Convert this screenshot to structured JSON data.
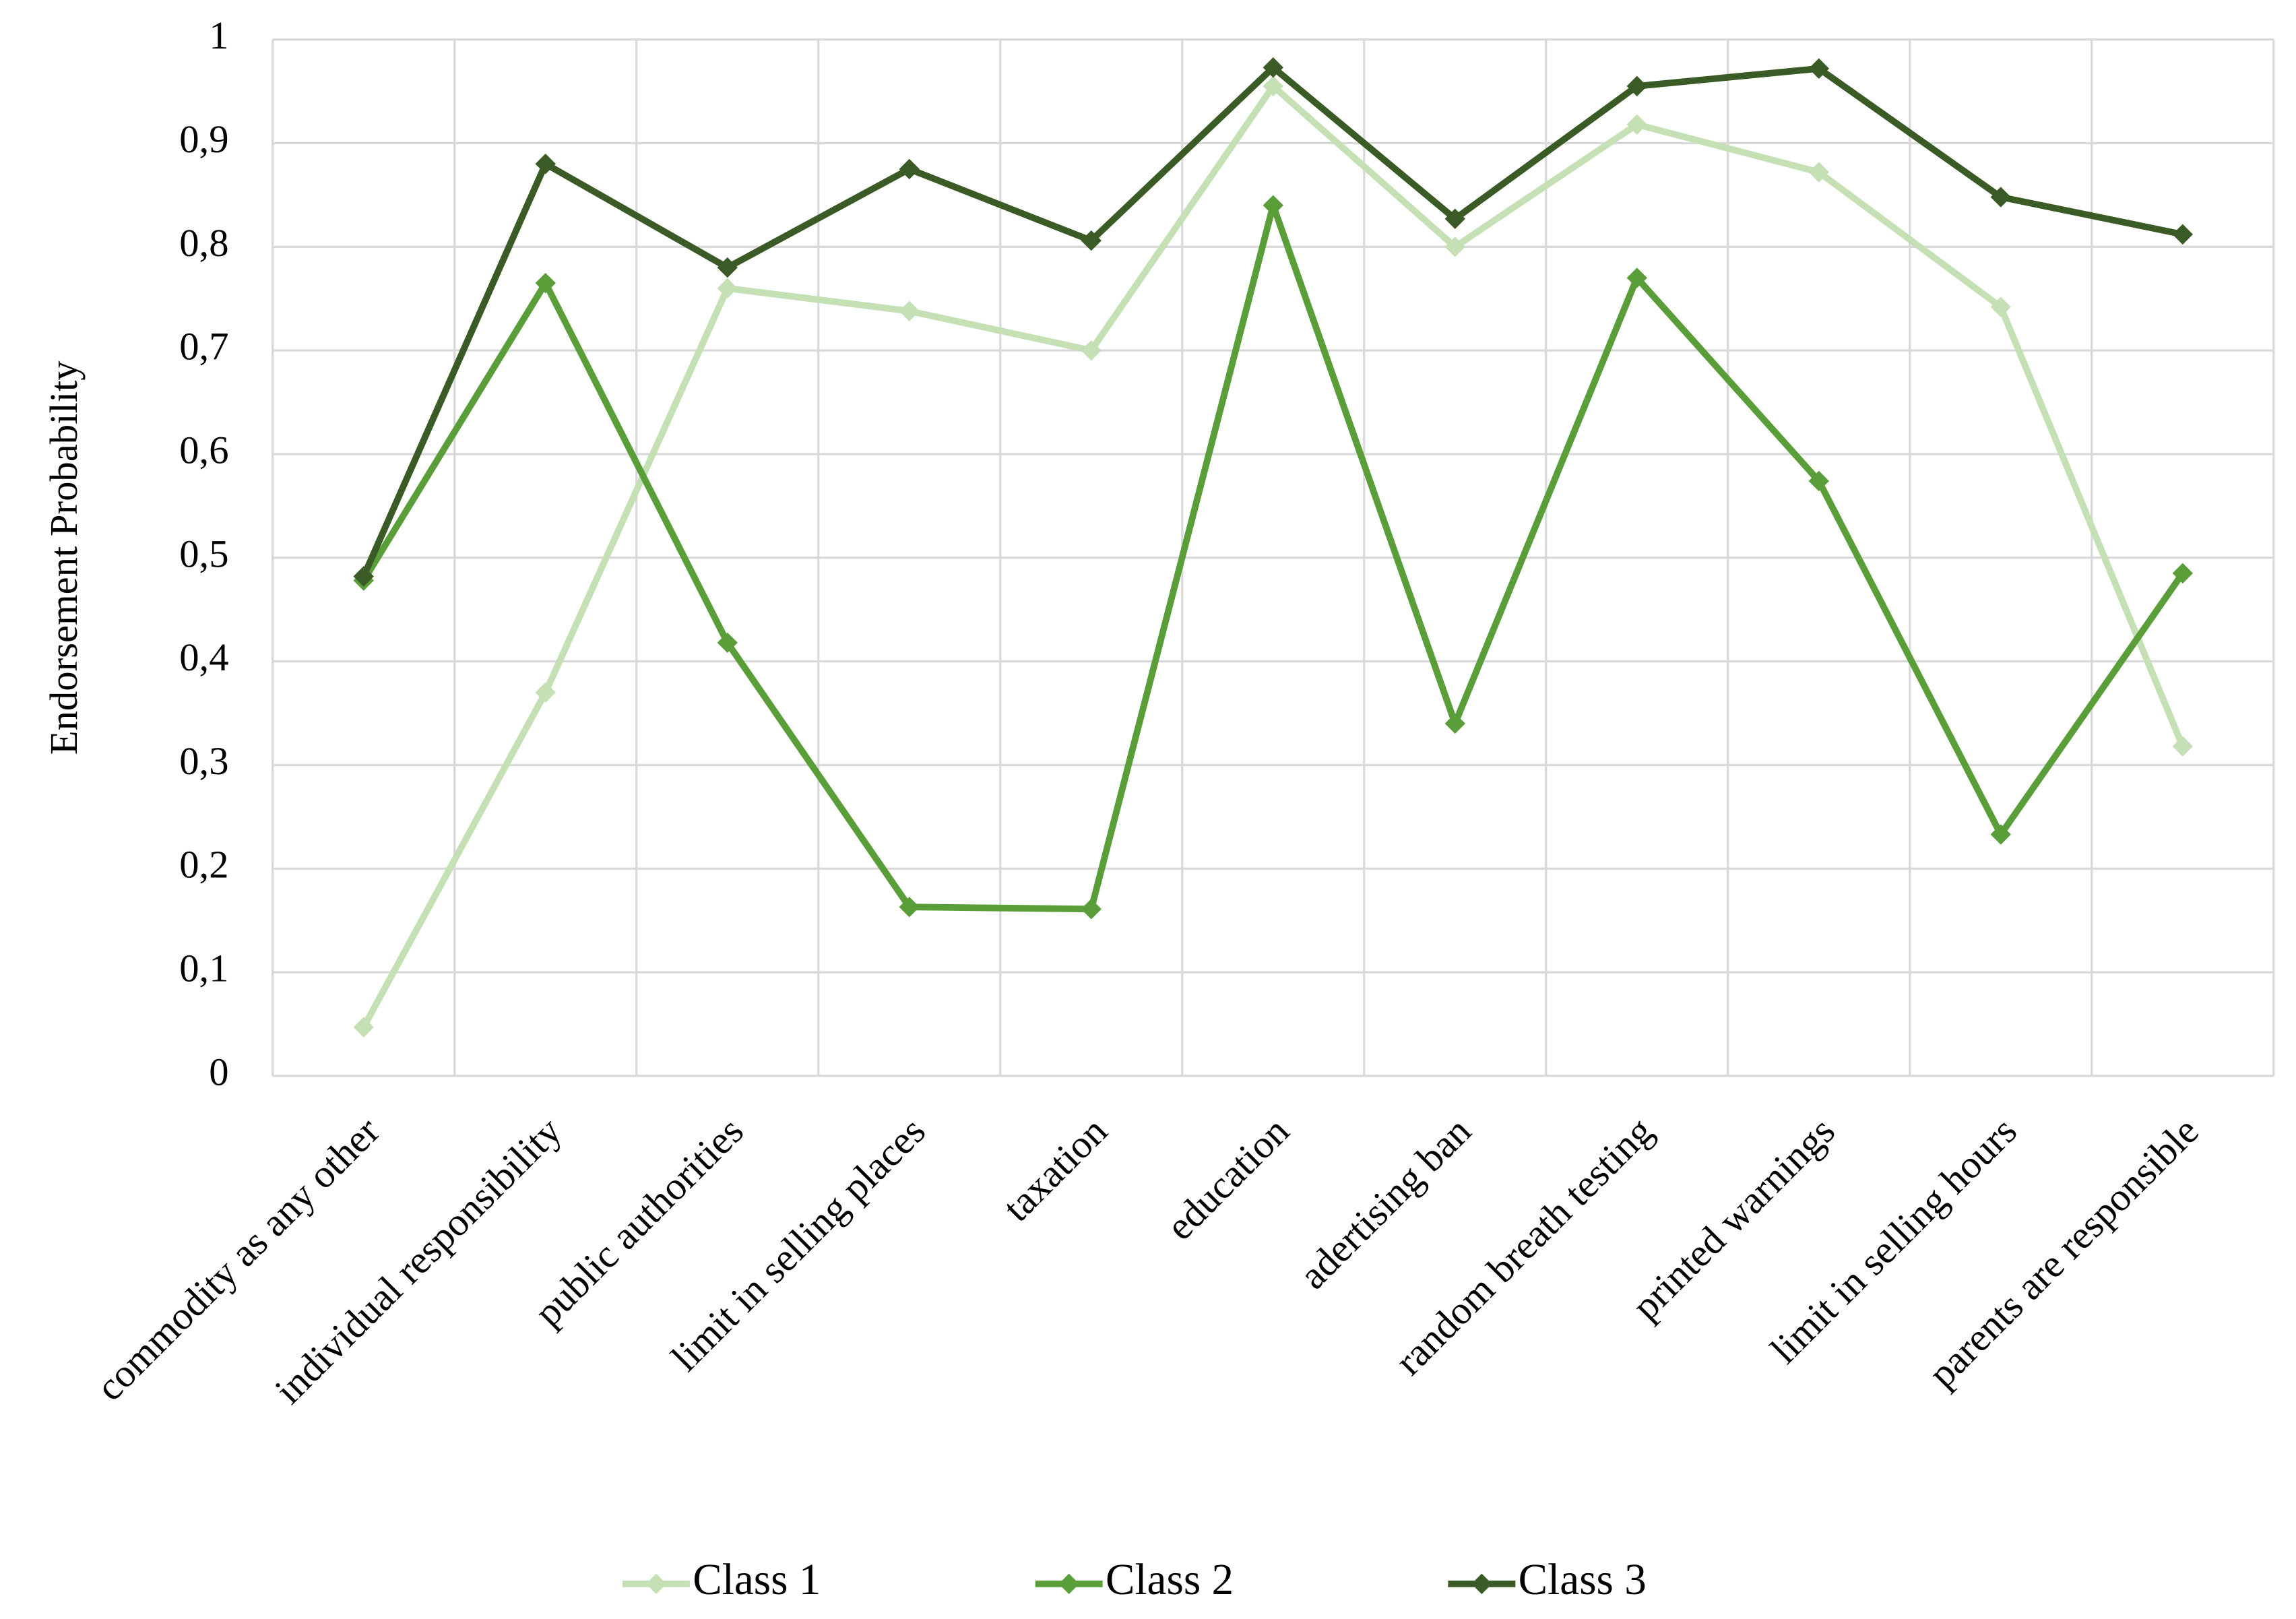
{
  "chart_data": {
    "type": "line",
    "y_label": "Endorsement Probability",
    "categories": [
      "commodity as any other",
      "individual responsibility",
      "public authorities",
      "limit in selling places",
      "taxation",
      "education",
      "adertising ban",
      "random breath testing",
      "printed warnings",
      "limit in selling hours",
      "parents are responsible"
    ],
    "series": [
      {
        "name": "Class 1",
        "color": "#c5e0b4",
        "values": [
          0.047,
          0.37,
          0.76,
          0.738,
          0.7,
          0.955,
          0.8,
          0.918,
          0.872,
          0.742,
          0.318
        ]
      },
      {
        "name": "Class 2",
        "color": "#5a9e3a",
        "values": [
          0.478,
          0.765,
          0.418,
          0.163,
          0.161,
          0.84,
          0.34,
          0.77,
          0.574,
          0.233,
          0.485
        ]
      },
      {
        "name": "Class 3",
        "color": "#3b5b26",
        "values": [
          0.482,
          0.88,
          0.78,
          0.875,
          0.806,
          0.973,
          0.827,
          0.955,
          0.972,
          0.848,
          0.812
        ]
      }
    ],
    "ylim": [
      0,
      1
    ],
    "yticks": [
      0,
      {
        "value": 0.1,
        "label": "0,1"
      },
      {
        "value": 0.2,
        "label": "0,2"
      },
      {
        "value": 0.3,
        "label": "0,3"
      },
      {
        "value": 0.4,
        "label": "0,4"
      },
      {
        "value": 0.5,
        "label": "0,5"
      },
      {
        "value": 0.6,
        "label": "0,6"
      },
      {
        "value": 0.7,
        "label": "0,7"
      },
      {
        "value": 0.8,
        "label": "0,8"
      },
      {
        "value": 0.9,
        "label": "0,9"
      },
      1
    ],
    "grid": true,
    "legend": "bottom"
  }
}
